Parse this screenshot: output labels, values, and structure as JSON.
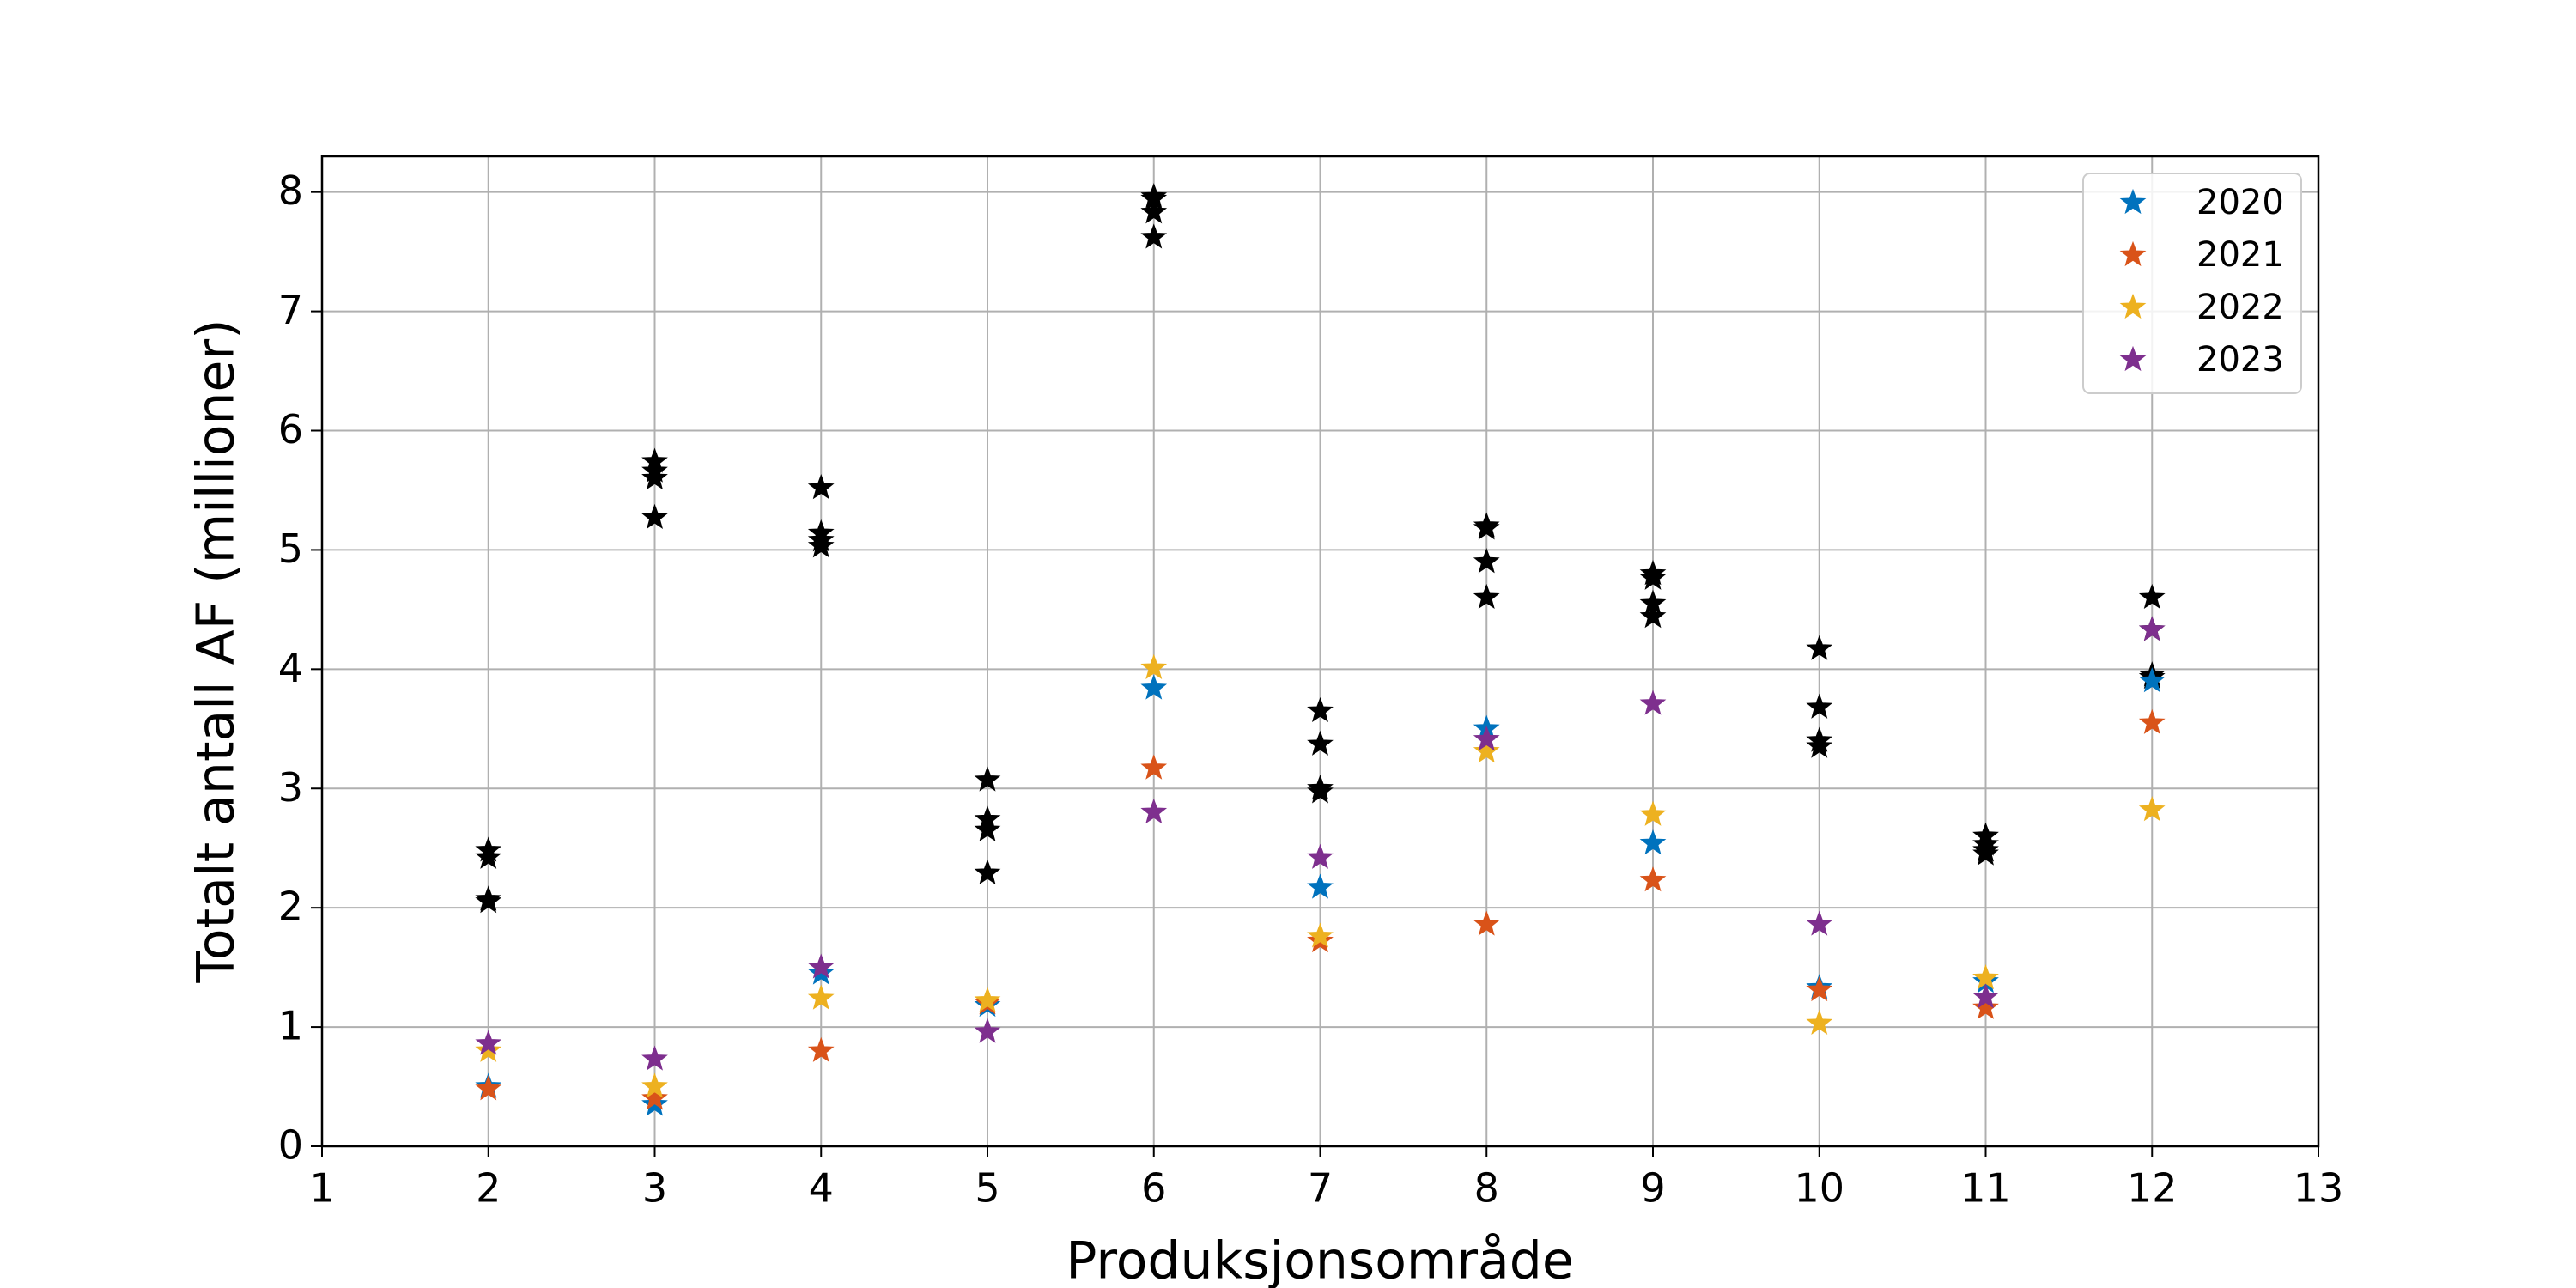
{
  "chart_data": {
    "type": "scatter",
    "xlabel": "Produksjonsområde",
    "ylabel": "Totalt antall AF (millioner)",
    "x": [
      2,
      3,
      4,
      5,
      6,
      7,
      8,
      9,
      10,
      11,
      12
    ],
    "xlim": [
      1,
      13
    ],
    "xticks": [
      1,
      2,
      3,
      4,
      5,
      6,
      7,
      8,
      9,
      10,
      11,
      12,
      13
    ],
    "ylim": [
      0,
      8.3
    ],
    "yticks": [
      0,
      1,
      2,
      3,
      4,
      5,
      6,
      7,
      8
    ],
    "grid": true,
    "legend": "upper right",
    "marker": "star",
    "series": [
      {
        "color": "#000000",
        "x": [
          2,
          2,
          2,
          2,
          3,
          3,
          3,
          3,
          4,
          4,
          4,
          4,
          5,
          5,
          5,
          5,
          6,
          6,
          6,
          6,
          7,
          7,
          7,
          7,
          8,
          8,
          8,
          8,
          9,
          9,
          9,
          9,
          10,
          10,
          10,
          10,
          11,
          11,
          11,
          11,
          12,
          12,
          12,
          12
        ],
        "values": [
          2.48,
          2.42,
          2.07,
          2.05,
          5.74,
          5.66,
          5.6,
          5.27,
          5.52,
          5.14,
          5.08,
          5.03,
          3.07,
          2.74,
          2.65,
          2.29,
          7.96,
          7.94,
          7.83,
          7.62,
          3.65,
          3.37,
          3.0,
          2.97,
          5.2,
          5.18,
          4.9,
          4.6,
          4.8,
          4.76,
          4.55,
          4.44,
          4.17,
          3.68,
          3.4,
          3.35,
          2.6,
          2.53,
          2.48,
          2.45,
          4.6,
          4.33,
          3.95,
          3.93
        ]
      },
      {
        "name": "2020",
        "color": "#0072bd",
        "values": [
          0.5,
          0.35,
          1.45,
          1.18,
          3.84,
          2.17,
          3.5,
          2.54,
          1.33,
          1.38,
          3.9
        ]
      },
      {
        "name": "2021",
        "color": "#d95319",
        "values": [
          0.48,
          0.4,
          0.8,
          1.2,
          3.17,
          1.72,
          1.86,
          2.23,
          1.31,
          1.16,
          3.55
        ]
      },
      {
        "name": "2022",
        "color": "#edb120",
        "values": [
          0.8,
          0.5,
          1.24,
          1.22,
          4.01,
          1.76,
          3.31,
          2.78,
          1.03,
          1.41,
          2.82
        ]
      },
      {
        "name": "2023",
        "color": "#7e2f8e",
        "values": [
          0.86,
          0.73,
          1.5,
          0.96,
          2.8,
          2.42,
          3.41,
          3.71,
          1.86,
          1.25,
          4.33
        ]
      }
    ]
  }
}
